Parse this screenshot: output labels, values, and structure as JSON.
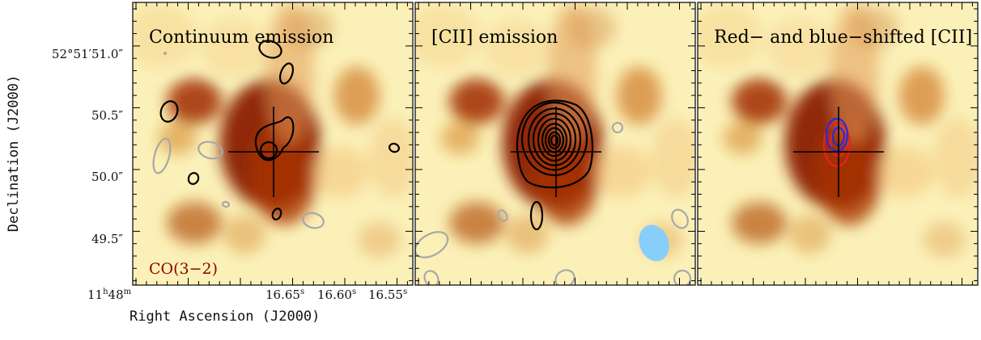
{
  "figure": {
    "y_axis_label": "Declination (J2000)",
    "x_axis_label": "Right Ascension (J2000)",
    "y_ticks": [
      {
        "label": "52°51′51.0″",
        "dec_offset": 0.97
      },
      {
        "label": "50.5″",
        "dec_offset": 0.47
      },
      {
        "label": "50.0″",
        "dec_offset": -0.03
      },
      {
        "label": "49.5″",
        "dec_offset": -0.53
      }
    ],
    "x_ticks": [
      {
        "label": "11",
        "sup": "h",
        "label2": "48",
        "sup2": "m",
        "ra_offset": -1.45
      },
      {
        "label": "16.65",
        "sup": "s",
        "ra_offset": -0.02
      },
      {
        "label": "16.60",
        "sup": "s",
        "ra_offset": 0.43
      },
      {
        "label": "16.55",
        "sup": "s",
        "ra_offset": 0.88
      }
    ],
    "panels": [
      {
        "title": "Continuum emission",
        "corner_label": "CO(3−2)",
        "corner_color": "#8b0000"
      },
      {
        "title": "[CII] emission",
        "beam_color": "#87cefa"
      },
      {
        "title": "Red− and blue−shifted [CII]"
      }
    ],
    "colors": {
      "contour_positive": "#000000",
      "contour_negative": "#a8a8a8",
      "redshifted": "#e8202a",
      "blueshifted": "#2a2ad8"
    }
  }
}
